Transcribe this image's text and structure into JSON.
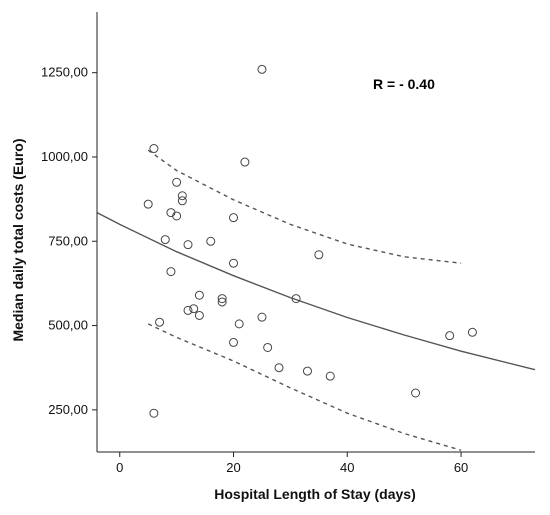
{
  "chart_data": {
    "type": "scatter",
    "xlabel": "Hospital Length of Stay (days)",
    "ylabel": "Median daily total costs (Euro)",
    "annotation": "R = - 0.40",
    "xlim": [
      -4,
      73
    ],
    "ylim": [
      125,
      1430
    ],
    "x_ticks": [
      {
        "value": 0,
        "label": "0"
      },
      {
        "value": 20,
        "label": "20"
      },
      {
        "value": 40,
        "label": "40"
      },
      {
        "value": 60,
        "label": "60"
      }
    ],
    "y_ticks": [
      {
        "value": 250,
        "label": "250,00"
      },
      {
        "value": 500,
        "label": "500,00"
      },
      {
        "value": 750,
        "label": "750,00"
      },
      {
        "value": 1000,
        "label": "1000,00"
      },
      {
        "value": 1250,
        "label": "1250,00"
      }
    ],
    "points": [
      {
        "x": 5,
        "y": 860
      },
      {
        "x": 6,
        "y": 1025
      },
      {
        "x": 6,
        "y": 240
      },
      {
        "x": 7,
        "y": 510
      },
      {
        "x": 8,
        "y": 755
      },
      {
        "x": 9,
        "y": 835
      },
      {
        "x": 9,
        "y": 660
      },
      {
        "x": 10,
        "y": 925
      },
      {
        "x": 10,
        "y": 825
      },
      {
        "x": 11,
        "y": 885
      },
      {
        "x": 11,
        "y": 870
      },
      {
        "x": 12,
        "y": 740
      },
      {
        "x": 12,
        "y": 545
      },
      {
        "x": 13,
        "y": 550
      },
      {
        "x": 14,
        "y": 590
      },
      {
        "x": 14,
        "y": 530
      },
      {
        "x": 16,
        "y": 750
      },
      {
        "x": 18,
        "y": 580
      },
      {
        "x": 18,
        "y": 570
      },
      {
        "x": 20,
        "y": 820
      },
      {
        "x": 20,
        "y": 685
      },
      {
        "x": 20,
        "y": 450
      },
      {
        "x": 21,
        "y": 505
      },
      {
        "x": 22,
        "y": 985
      },
      {
        "x": 25,
        "y": 1260
      },
      {
        "x": 25,
        "y": 525
      },
      {
        "x": 26,
        "y": 435
      },
      {
        "x": 28,
        "y": 375
      },
      {
        "x": 31,
        "y": 580
      },
      {
        "x": 33,
        "y": 365
      },
      {
        "x": 35,
        "y": 710
      },
      {
        "x": 37,
        "y": 350
      },
      {
        "x": 52,
        "y": 300
      },
      {
        "x": 58,
        "y": 470
      },
      {
        "x": 62,
        "y": 480
      }
    ],
    "fit_line": {
      "x": [
        -4,
        0,
        10,
        20,
        30,
        40,
        50,
        60,
        73
      ],
      "y": [
        835,
        800,
        719,
        648,
        583,
        524,
        472,
        424,
        369
      ]
    },
    "upper_bound": {
      "x": [
        5,
        10,
        20,
        30,
        40,
        50,
        60
      ],
      "y": [
        1020,
        960,
        873,
        800,
        742,
        704,
        685
      ]
    },
    "lower_bound": {
      "x": [
        5,
        10,
        20,
        30,
        40,
        50,
        60
      ],
      "y": [
        505,
        465,
        395,
        315,
        240,
        180,
        130
      ]
    }
  }
}
